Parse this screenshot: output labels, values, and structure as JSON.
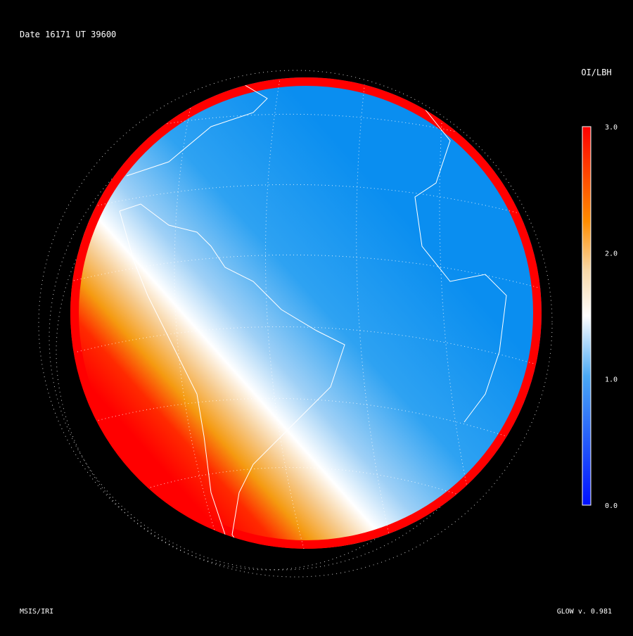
{
  "header": {
    "title": "Date 16171  UT 39600"
  },
  "colorbar": {
    "label": "OI/LBH",
    "ticks": [
      "3.0",
      "2.0",
      "1.0",
      "0.0"
    ]
  },
  "footer": {
    "left": "MSIS/IRI",
    "right": "GLOW v. 0.981"
  }
}
